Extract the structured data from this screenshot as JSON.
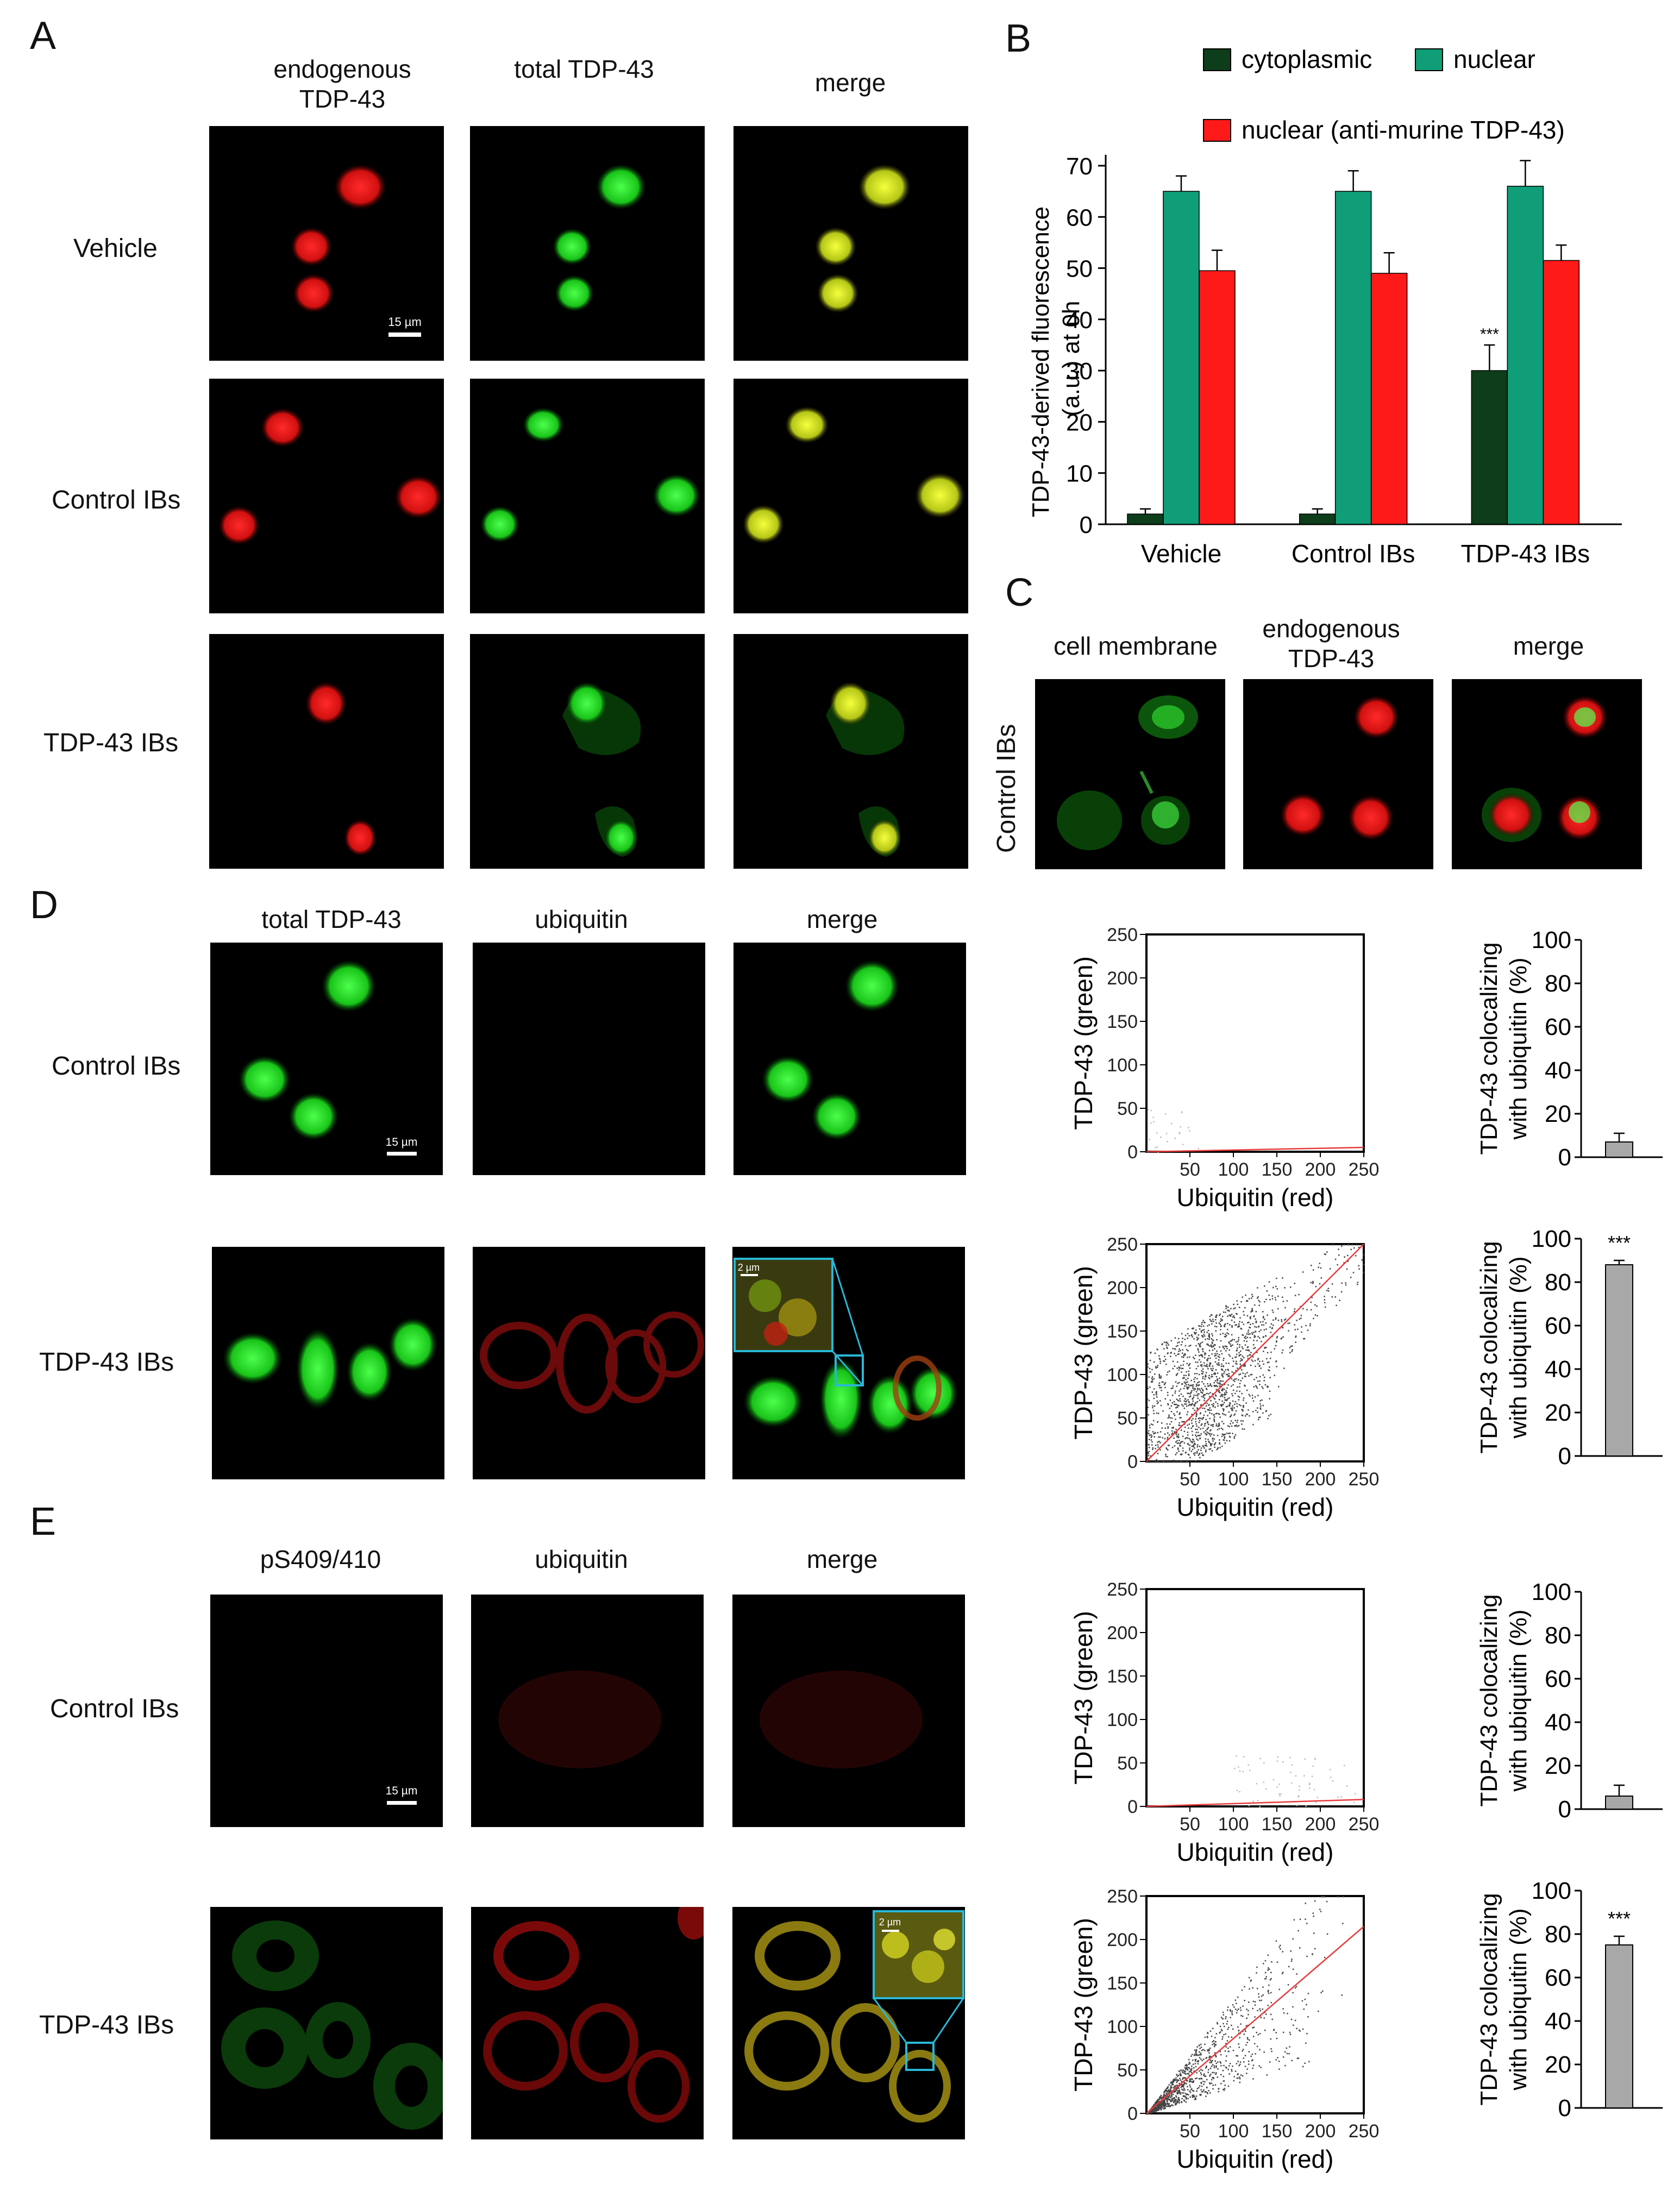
{
  "panel_letters": {
    "a": "A",
    "b": "B",
    "c": "C",
    "d": "D",
    "e": "E"
  },
  "panelA": {
    "col1": "endogenous TDP-43",
    "col2": "total TDP-43",
    "col3": "merge",
    "rows": [
      "Vehicle",
      "Control IBs",
      "TDP-43 IBs"
    ],
    "scale_bar": "15 µm"
  },
  "panelC": {
    "row": "Control IBs",
    "col1": "cell membrane",
    "col2": "endogenous TDP-43",
    "col3": "merge"
  },
  "panelD": {
    "col1": "total TDP-43",
    "col2": "ubiquitin",
    "col3": "merge",
    "rows": [
      "Control IBs",
      "TDP-43 IBs"
    ],
    "scale_bar": "15 µm",
    "inset_scale": "2 µm"
  },
  "panelE": {
    "col1": "pS409/410",
    "col2": "ubiquitin",
    "col3": "merge",
    "rows": [
      "Control IBs",
      "TDP-43 IBs"
    ],
    "scale_bar": "15 µm",
    "inset_scale": "2 µm"
  },
  "colors": {
    "cytoplasmic": "#0d3d1a",
    "nuclear": "#0f9e77",
    "nuclear_murine": "#ff1a1a",
    "bar_gray": "#a8a8a8"
  },
  "chart_data": [
    {
      "id": "panelB",
      "type": "bar",
      "categories": [
        "Vehicle",
        "Control IBs",
        "TDP-43 IBs"
      ],
      "series": [
        {
          "name": "cytoplasmic",
          "values": [
            2,
            2,
            30
          ],
          "errors": [
            1,
            1,
            5
          ]
        },
        {
          "name": "nuclear",
          "values": [
            65,
            65,
            66
          ],
          "errors": [
            3,
            4,
            5
          ]
        },
        {
          "name": "nuclear (anti-murine TDP-43)",
          "values": [
            49.5,
            49,
            51.5
          ],
          "errors": [
            4,
            4,
            3
          ]
        }
      ],
      "ylabel": "TDP-43-derived fluorescence (a.u.) at 0h",
      "ylim": [
        0,
        70
      ],
      "yticks": [
        0,
        10,
        20,
        30,
        40,
        50,
        60,
        70
      ],
      "annotation": "***"
    },
    {
      "id": "scatterD1",
      "type": "scatter",
      "xlabel": "Ubiquitin (red)",
      "ylabel": "TDP-43 (green)",
      "xlim": [
        0,
        250
      ],
      "ylim": [
        0,
        250
      ],
      "xticks": [
        50,
        100,
        150,
        200,
        250
      ],
      "yticks": [
        0,
        50,
        100,
        150,
        200,
        250
      ],
      "fit_line": [
        [
          0,
          0
        ],
        [
          250,
          5
        ]
      ]
    },
    {
      "id": "scatterD2",
      "type": "scatter",
      "xlabel": "Ubiquitin (red)",
      "ylabel": "TDP-43 (green)",
      "xlim": [
        0,
        250
      ],
      "ylim": [
        0,
        250
      ],
      "xticks": [
        50,
        100,
        150,
        200,
        250
      ],
      "yticks": [
        0,
        50,
        100,
        150,
        200,
        250
      ],
      "fit_line": [
        [
          0,
          0
        ],
        [
          250,
          250
        ]
      ]
    },
    {
      "id": "scatterE1",
      "type": "scatter",
      "xlabel": "Ubiquitin (red)",
      "ylabel": "TDP-43 (green)",
      "xlim": [
        0,
        250
      ],
      "ylim": [
        0,
        250
      ],
      "xticks": [
        50,
        100,
        150,
        200,
        250
      ],
      "yticks": [
        0,
        50,
        100,
        150,
        200,
        250
      ],
      "fit_line": [
        [
          0,
          0
        ],
        [
          250,
          8
        ]
      ]
    },
    {
      "id": "scatterE2",
      "type": "scatter",
      "xlabel": "Ubiquitin (red)",
      "ylabel": "TDP-43 (green)",
      "xlim": [
        0,
        250
      ],
      "ylim": [
        0,
        250
      ],
      "xticks": [
        50,
        100,
        150,
        200,
        250
      ],
      "yticks": [
        0,
        50,
        100,
        150,
        200,
        250
      ],
      "fit_line": [
        [
          0,
          0
        ],
        [
          250,
          215
        ]
      ]
    },
    {
      "id": "barD1",
      "type": "bar",
      "ylabel": "TDP-43 colocalizing with ubiquitin (%)",
      "ylim": [
        0,
        100
      ],
      "yticks": [
        0,
        20,
        40,
        60,
        80,
        100
      ],
      "values": [
        7
      ],
      "errors": [
        4
      ],
      "annotation": ""
    },
    {
      "id": "barD2",
      "type": "bar",
      "ylabel": "TDP-43 colocalizing with ubiquitin (%)",
      "ylim": [
        0,
        100
      ],
      "yticks": [
        0,
        20,
        40,
        60,
        80,
        100
      ],
      "values": [
        88
      ],
      "errors": [
        2
      ],
      "annotation": "***"
    },
    {
      "id": "barE1",
      "type": "bar",
      "ylabel": "TDP-43 colocalizing with ubiquitin (%)",
      "ylim": [
        0,
        100
      ],
      "yticks": [
        0,
        20,
        40,
        60,
        80,
        100
      ],
      "values": [
        6
      ],
      "errors": [
        5
      ],
      "annotation": ""
    },
    {
      "id": "barE2",
      "type": "bar",
      "ylabel": "TDP-43 colocalizing with ubiquitin (%)",
      "ylim": [
        0,
        100
      ],
      "yticks": [
        0,
        20,
        40,
        60,
        80,
        100
      ],
      "values": [
        75
      ],
      "errors": [
        4
      ],
      "annotation": "***"
    }
  ]
}
